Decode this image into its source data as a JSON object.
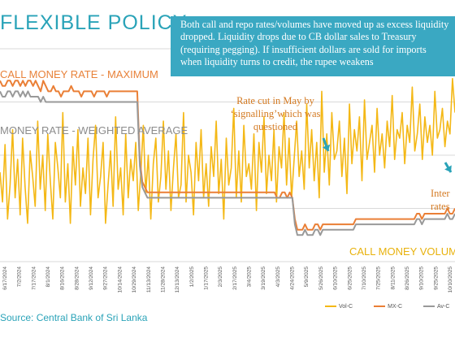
{
  "title": "FLEXIBLE POLICY",
  "callout": "Both call and repo rates/volumes have moved up  as excess liquidity dropped. Liquidity drops due to CB dollar sales to Treasury (requiring pegging). If insufficient dollars are sold for imports when liquidity turns to credit, the rupee weakens",
  "labels": {
    "max": "CALL MONEY RATE - MAXIMUM",
    "avg": "MONEY RATE - WEIGHTED AVERAGE",
    "volumes": "CALL MONEY VOLUMES",
    "rate_cut": "Rate cut in May by ‘signalling’which was questioned",
    "interbank": "Inter rates"
  },
  "source": "Source: Central Bank of Sri Lanka",
  "colors": {
    "vol": "#f4b816",
    "max": "#ea7f36",
    "avg": "#999999",
    "title": "#2aa3b8",
    "callout_bg": "#3aa8c2",
    "arrow": "#2aa3b8",
    "grid": "#d9d9d9"
  },
  "chart_data": {
    "type": "line",
    "title": "",
    "grid": true,
    "legend_position": "bottom-right",
    "x_tick_labels": [
      "6/17/2024",
      "7/2/2024",
      "7/17/2024",
      "8/1/2024",
      "8/16/2024",
      "8/28/2024",
      "9/12/2024",
      "9/27/2024",
      "10/14/2024",
      "10/29/2024",
      "11/13/2024",
      "11/28/2024",
      "12/13/2024",
      "1/2/2025",
      "1/17/2025",
      "2/3/2025",
      "2/17/2025",
      "3/4/2025",
      "3/19/2025",
      "4/3/2025",
      "4/24/2025",
      "5/9/2025",
      "5/26/2025",
      "6/10/2025",
      "6/25/2025",
      "7/10/2025",
      "7/25/2025",
      "8/11/2025",
      "8/26/2025",
      "9/10/2025",
      "9/25/2025",
      "10/10/2025"
    ],
    "series": [
      {
        "name": "Vol-C",
        "axis": "secondary",
        "values": [
          42,
          28,
          55,
          20,
          36,
          62,
          30,
          48,
          22,
          58,
          35,
          18,
          52,
          40,
          26,
          66,
          34,
          50,
          24,
          60,
          38,
          20,
          56,
          44,
          30,
          70,
          28,
          46,
          18,
          54,
          36,
          62,
          26,
          44,
          32,
          58,
          22,
          48,
          64,
          30,
          40,
          56,
          18,
          36,
          52,
          26,
          68,
          34,
          44,
          22,
          60,
          30,
          48,
          38,
          56,
          24,
          42,
          64,
          32,
          50,
          20,
          46,
          58,
          28,
          40,
          66,
          34,
          52,
          24,
          44,
          60,
          30,
          36,
          70,
          28,
          50,
          42,
          22,
          56,
          38,
          62,
          30,
          46,
          26,
          54,
          40,
          66,
          32,
          48,
          20,
          58,
          36,
          44,
          72,
          30,
          52,
          28,
          64,
          40,
          46,
          34,
          60,
          24,
          56,
          42,
          68,
          32,
          50,
          38,
          62,
          28,
          54,
          44,
          70,
          36,
          58,
          30,
          48,
          66,
          40,
          52,
          34,
          74,
          44,
          62,
          38,
          56,
          30,
          80,
          42,
          60,
          36,
          70,
          48,
          52,
          66,
          40,
          58,
          32,
          74,
          46,
          62,
          52,
          68,
          38,
          76,
          48,
          56,
          64,
          42,
          72,
          50,
          60,
          44,
          66,
          54,
          78,
          48,
          62,
          58,
          70,
          46,
          64,
          56,
          82,
          52,
          60,
          74,
          48,
          68,
          56,
          64,
          50,
          80,
          58,
          62,
          72,
          54,
          66,
          60,
          86,
          70
        ]
      },
      {
        "name": "MX-C",
        "axis": "primary",
        "values": [
          10.4,
          10.3,
          10.3,
          10.4,
          10.4,
          10.3,
          10.4,
          10.4,
          10.3,
          10.4,
          10.3,
          10.4,
          10.4,
          10.3,
          10.4,
          10.3,
          10.2,
          10.4,
          10.3,
          10.2,
          10.2,
          10.3,
          10.2,
          10.2,
          10.1,
          10.2,
          10.2,
          10.2,
          10.3,
          10.2,
          10.2,
          10.2,
          10.1,
          10.2,
          10.2,
          10.2,
          10.2,
          10.1,
          10.2,
          10.2,
          10.2,
          10.2,
          10.1,
          10.2,
          10.2,
          10.2,
          10.2,
          10.2,
          10.2,
          10.2,
          10.2,
          10.2,
          10.2,
          10.2,
          10.2,
          8.9,
          8.5,
          8.4,
          8.3,
          8.3,
          8.3,
          8.3,
          8.3,
          8.3,
          8.3,
          8.3,
          8.3,
          8.3,
          8.3,
          8.3,
          8.3,
          8.3,
          8.3,
          8.3,
          8.3,
          8.3,
          8.3,
          8.3,
          8.3,
          8.3,
          8.3,
          8.3,
          8.3,
          8.3,
          8.3,
          8.3,
          8.3,
          8.3,
          8.3,
          8.3,
          8.3,
          8.3,
          8.3,
          8.3,
          8.3,
          8.3,
          8.3,
          8.3,
          8.3,
          8.3,
          8.3,
          8.3,
          8.3,
          8.3,
          8.3,
          8.3,
          8.3,
          8.3,
          8.3,
          8.2,
          8.2,
          8.3,
          8.3,
          8.2,
          8.3,
          8.2,
          7.8,
          7.6,
          7.6,
          7.6,
          7.7,
          7.6,
          7.6,
          7.6,
          7.7,
          7.7,
          7.6,
          7.7,
          7.7,
          7.7,
          7.7,
          7.7,
          7.7,
          7.7,
          7.7,
          7.7,
          7.7,
          7.7,
          7.7,
          7.7,
          7.8,
          7.8,
          7.8,
          7.8,
          7.8,
          7.8,
          7.8,
          7.8,
          7.8,
          7.8,
          7.8,
          7.8,
          7.8,
          7.8,
          7.8,
          7.8,
          7.8,
          7.8,
          7.8,
          7.8,
          7.8,
          7.8,
          7.8,
          7.8,
          7.9,
          7.9,
          7.8,
          7.9,
          7.9,
          7.9,
          7.9,
          7.9,
          7.9,
          7.9,
          7.9,
          7.9,
          8.0,
          7.9,
          7.9,
          8.0
        ]
      },
      {
        "name": "Av-C",
        "axis": "primary",
        "values": [
          10.2,
          10.1,
          10.1,
          10.2,
          10.2,
          10.1,
          10.2,
          10.2,
          10.1,
          10.2,
          10.1,
          10.2,
          10.1,
          10.1,
          10.1,
          10.1,
          10.0,
          10.1,
          10.0,
          10.0,
          10.0,
          10.0,
          10.0,
          10.0,
          10.0,
          10.0,
          10.0,
          10.0,
          10.0,
          10.0,
          10.0,
          10.0,
          10.0,
          10.0,
          10.0,
          10.0,
          10.0,
          10.0,
          10.0,
          10.0,
          10.0,
          10.0,
          10.0,
          10.0,
          10.0,
          10.0,
          10.0,
          10.0,
          10.0,
          10.0,
          10.0,
          10.0,
          10.0,
          10.0,
          10.0,
          8.8,
          8.4,
          8.3,
          8.2,
          8.2,
          8.2,
          8.2,
          8.2,
          8.2,
          8.2,
          8.2,
          8.2,
          8.2,
          8.2,
          8.2,
          8.2,
          8.2,
          8.2,
          8.2,
          8.2,
          8.2,
          8.2,
          8.2,
          8.2,
          8.2,
          8.2,
          8.2,
          8.2,
          8.2,
          8.2,
          8.2,
          8.2,
          8.2,
          8.2,
          8.2,
          8.2,
          8.2,
          8.2,
          8.2,
          8.2,
          8.2,
          8.2,
          8.2,
          8.2,
          8.2,
          8.2,
          8.2,
          8.2,
          8.2,
          8.2,
          8.2,
          8.2,
          8.2,
          8.2,
          8.2,
          8.2,
          8.2,
          8.2,
          8.2,
          8.2,
          8.2,
          7.7,
          7.5,
          7.5,
          7.5,
          7.6,
          7.5,
          7.5,
          7.5,
          7.6,
          7.6,
          7.5,
          7.6,
          7.6,
          7.6,
          7.6,
          7.6,
          7.6,
          7.6,
          7.6,
          7.6,
          7.6,
          7.6,
          7.6,
          7.6,
          7.7,
          7.7,
          7.7,
          7.7,
          7.7,
          7.7,
          7.7,
          7.7,
          7.7,
          7.7,
          7.7,
          7.7,
          7.7,
          7.7,
          7.7,
          7.7,
          7.7,
          7.7,
          7.7,
          7.7,
          7.7,
          7.7,
          7.7,
          7.7,
          7.8,
          7.8,
          7.7,
          7.8,
          7.8,
          7.8,
          7.8,
          7.8,
          7.8,
          7.8,
          7.8,
          7.8,
          7.9,
          7.8,
          7.8,
          7.9
        ]
      }
    ],
    "primary_ylim": [
      7,
      11
    ],
    "secondary_ylim": [
      0,
      100
    ]
  }
}
